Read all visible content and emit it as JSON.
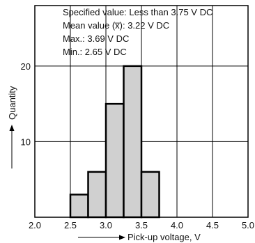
{
  "chart_data": {
    "type": "bar",
    "subtype": "histogram",
    "bins": [
      {
        "x0": 2.5,
        "x1": 2.75,
        "count": 3
      },
      {
        "x0": 2.75,
        "x1": 3.0,
        "count": 6
      },
      {
        "x0": 3.0,
        "x1": 3.25,
        "count": 15
      },
      {
        "x0": 3.25,
        "x1": 3.5,
        "count": 20
      },
      {
        "x0": 3.5,
        "x1": 3.75,
        "count": 6
      }
    ],
    "xlabel": "Pick-up voltage, V",
    "ylabel": "Quantity",
    "xlim": [
      2.0,
      5.0
    ],
    "ylim": [
      0,
      28
    ],
    "x_ticks": [
      "2.0",
      "2.5",
      "3.0",
      "3.5",
      "4.0",
      "4.5",
      "5.0"
    ],
    "y_ticks": [
      "10",
      "20"
    ],
    "grid": true,
    "annotations": [
      "Specified value: Less than 3.75 V DC",
      "Mean value (x̅): 3.22 V DC",
      "Max.: 3.69 V DC",
      "Min.: 2.65 V DC"
    ],
    "colors": {
      "bar_fill": "#d0d0d0",
      "bar_edge": "#000000",
      "grid": "#000000"
    }
  }
}
